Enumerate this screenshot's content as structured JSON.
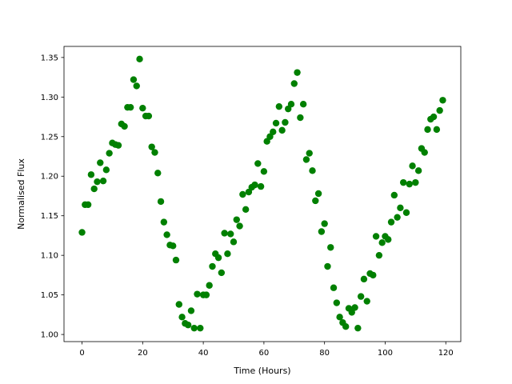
{
  "chart_data": {
    "type": "scatter",
    "xlabel": "Time (Hours)",
    "ylabel": "Normalised Flux",
    "color": "#008000",
    "x": [
      0,
      1,
      2,
      3,
      4,
      5,
      6,
      7,
      8,
      9,
      10,
      11,
      12,
      13,
      14,
      15,
      16,
      17,
      18,
      19,
      20,
      21,
      22,
      23,
      24,
      25,
      26,
      27,
      28,
      29,
      30,
      31,
      32,
      33,
      34,
      35,
      36,
      37,
      38,
      39,
      40,
      41,
      42,
      43,
      44,
      45,
      46,
      47,
      48,
      49,
      50,
      51,
      52,
      53,
      54,
      55,
      56,
      57,
      58,
      59,
      60,
      61,
      62,
      63,
      64,
      65,
      66,
      67,
      68,
      69,
      70,
      71,
      72,
      73,
      74,
      75,
      76,
      77,
      78,
      79,
      80,
      81,
      82,
      83,
      84,
      85,
      86,
      87,
      88,
      89,
      90,
      91,
      92,
      93,
      94,
      95,
      96,
      97,
      98,
      99,
      100,
      101,
      102,
      103,
      104,
      105,
      106,
      107,
      108,
      109,
      110,
      111,
      112,
      113,
      114,
      115,
      116,
      117,
      118,
      119
    ],
    "values": [
      1.129,
      1.164,
      1.164,
      1.202,
      1.184,
      1.193,
      1.217,
      1.194,
      1.208,
      1.229,
      1.242,
      1.24,
      1.239,
      1.266,
      1.263,
      1.287,
      1.287,
      1.322,
      1.314,
      1.348,
      1.286,
      1.276,
      1.276,
      1.237,
      1.23,
      1.204,
      1.168,
      1.142,
      1.126,
      1.113,
      1.112,
      1.094,
      1.038,
      1.022,
      1.014,
      1.012,
      1.03,
      1.008,
      1.051,
      1.008,
      1.05,
      1.05,
      1.062,
      1.086,
      1.102,
      1.097,
      1.078,
      1.128,
      1.102,
      1.127,
      1.117,
      1.145,
      1.137,
      1.177,
      1.158,
      1.18,
      1.186,
      1.189,
      1.216,
      1.187,
      1.206,
      1.244,
      1.25,
      1.256,
      1.267,
      1.288,
      1.258,
      1.268,
      1.285,
      1.291,
      1.317,
      1.331,
      1.274,
      1.291,
      1.221,
      1.229,
      1.207,
      1.169,
      1.178,
      1.13,
      1.14,
      1.086,
      1.11,
      1.059,
      1.04,
      1.022,
      1.015,
      1.01,
      1.033,
      1.028,
      1.034,
      1.008,
      1.048,
      1.07,
      1.042,
      1.077,
      1.075,
      1.124,
      1.1,
      1.116,
      1.124,
      1.12,
      1.142,
      1.176,
      1.148,
      1.16,
      1.192,
      1.154,
      1.19,
      1.213,
      1.192,
      1.207,
      1.235,
      1.23,
      1.259,
      1.272,
      1.275,
      1.259,
      1.283,
      1.296
    ],
    "xlim": [
      -5.95,
      124.95
    ],
    "xticks": [
      0,
      20,
      40,
      60,
      80,
      100,
      120
    ],
    "ylim": [
      0.991,
      1.364
    ],
    "yticks": [
      {
        "value": 1,
        "label": "1.00"
      },
      1.05,
      {
        "value": 1.1,
        "label": "1.10"
      },
      1.15,
      {
        "value": 1.2,
        "label": "1.20"
      },
      1.25,
      {
        "value": 1.3,
        "label": "1.30"
      },
      1.35
    ]
  }
}
